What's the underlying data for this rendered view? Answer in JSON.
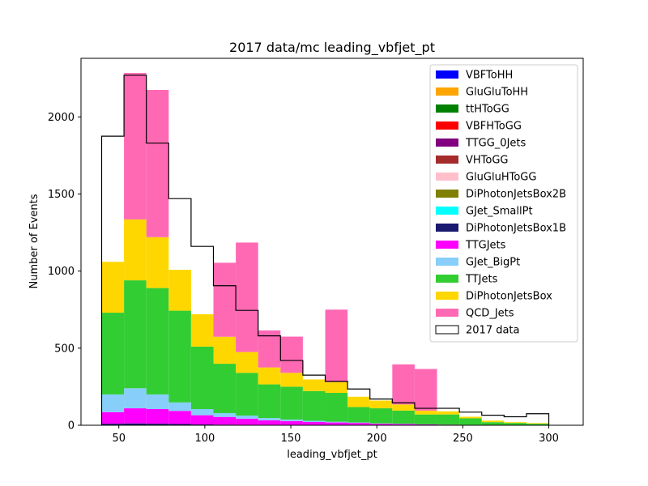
{
  "chart_data": {
    "type": "bar",
    "title": "2017 data/mc leading_vbfjet_pt",
    "xlabel": "leading_vbfjet_pt",
    "ylabel": "Number of Events",
    "xlim": [
      28,
      320
    ],
    "ylim": [
      0,
      2380
    ],
    "x_ticks": [
      50,
      100,
      150,
      200,
      250,
      300
    ],
    "y_ticks": [
      0,
      500,
      1000,
      1500,
      2000
    ],
    "legend_position": "top-right",
    "bin_edges": [
      40,
      53,
      66,
      79,
      92,
      105,
      118,
      131,
      144,
      157,
      170,
      183,
      196,
      209,
      222,
      235,
      248,
      261,
      274,
      287,
      300
    ],
    "stacked_series": [
      {
        "name": "DiPhotonJetsBox1B",
        "color": "#191970",
        "values": [
          10,
          12,
          10,
          8,
          5,
          4,
          3,
          2,
          2,
          1,
          1,
          1,
          0,
          0,
          0,
          0,
          0,
          0,
          0,
          0
        ]
      },
      {
        "name": "TTGJets",
        "color": "#ff00ff",
        "values": [
          75,
          98,
          95,
          85,
          60,
          50,
          40,
          30,
          25,
          20,
          17,
          14,
          10,
          8,
          6,
          4,
          3,
          2,
          1,
          1
        ]
      },
      {
        "name": "GJet_BigPt",
        "color": "#87cefa",
        "values": [
          115,
          130,
          95,
          55,
          40,
          25,
          20,
          15,
          10,
          8,
          5,
          3,
          2,
          2,
          0,
          0,
          0,
          0,
          0,
          0
        ]
      },
      {
        "name": "TTJets",
        "color": "#32cd32",
        "values": [
          530,
          700,
          690,
          595,
          405,
          320,
          277,
          218,
          213,
          193,
          187,
          100,
          98,
          85,
          64,
          66,
          42,
          18,
          14,
          9
        ]
      },
      {
        "name": "DiPhotonJetsBox",
        "color": "#ffd700",
        "values": [
          330,
          395,
          330,
          265,
          210,
          175,
          135,
          110,
          90,
          75,
          70,
          67,
          50,
          40,
          25,
          20,
          10,
          10,
          5,
          4
        ]
      },
      {
        "name": "QCD_Jets",
        "color": "#ff69b4",
        "values": [
          0,
          950,
          955,
          0,
          0,
          480,
          710,
          240,
          235,
          0,
          470,
          0,
          0,
          260,
          270,
          0,
          0,
          0,
          0,
          0
        ]
      }
    ],
    "data_series": {
      "name": "2017 data",
      "values": [
        1875,
        2270,
        1830,
        1470,
        1160,
        905,
        745,
        580,
        420,
        325,
        285,
        235,
        170,
        145,
        110,
        110,
        85,
        65,
        55,
        75
      ]
    },
    "legend": [
      {
        "name": "VBFToHH",
        "color": "#0000ff"
      },
      {
        "name": "GluGluToHH",
        "color": "#ffa500"
      },
      {
        "name": "ttHToGG",
        "color": "#008000"
      },
      {
        "name": "VBFHToGG",
        "color": "#ff0000"
      },
      {
        "name": "TTGG_0Jets",
        "color": "#800080"
      },
      {
        "name": "VHToGG",
        "color": "#a52a2a"
      },
      {
        "name": "GluGluHToGG",
        "color": "#ffc0cb"
      },
      {
        "name": "DiPhotonJetsBox2B",
        "color": "#808000"
      },
      {
        "name": "GJet_SmallPt",
        "color": "#00ffff"
      },
      {
        "name": "DiPhotonJetsBox1B",
        "color": "#191970"
      },
      {
        "name": "TTGJets",
        "color": "#ff00ff"
      },
      {
        "name": "GJet_BigPt",
        "color": "#87cefa"
      },
      {
        "name": "TTJets",
        "color": "#32cd32"
      },
      {
        "name": "DiPhotonJetsBox",
        "color": "#ffd700"
      },
      {
        "name": "QCD_Jets",
        "color": "#ff69b4"
      },
      {
        "name": "2017 data",
        "color": "#ffffff"
      }
    ]
  }
}
